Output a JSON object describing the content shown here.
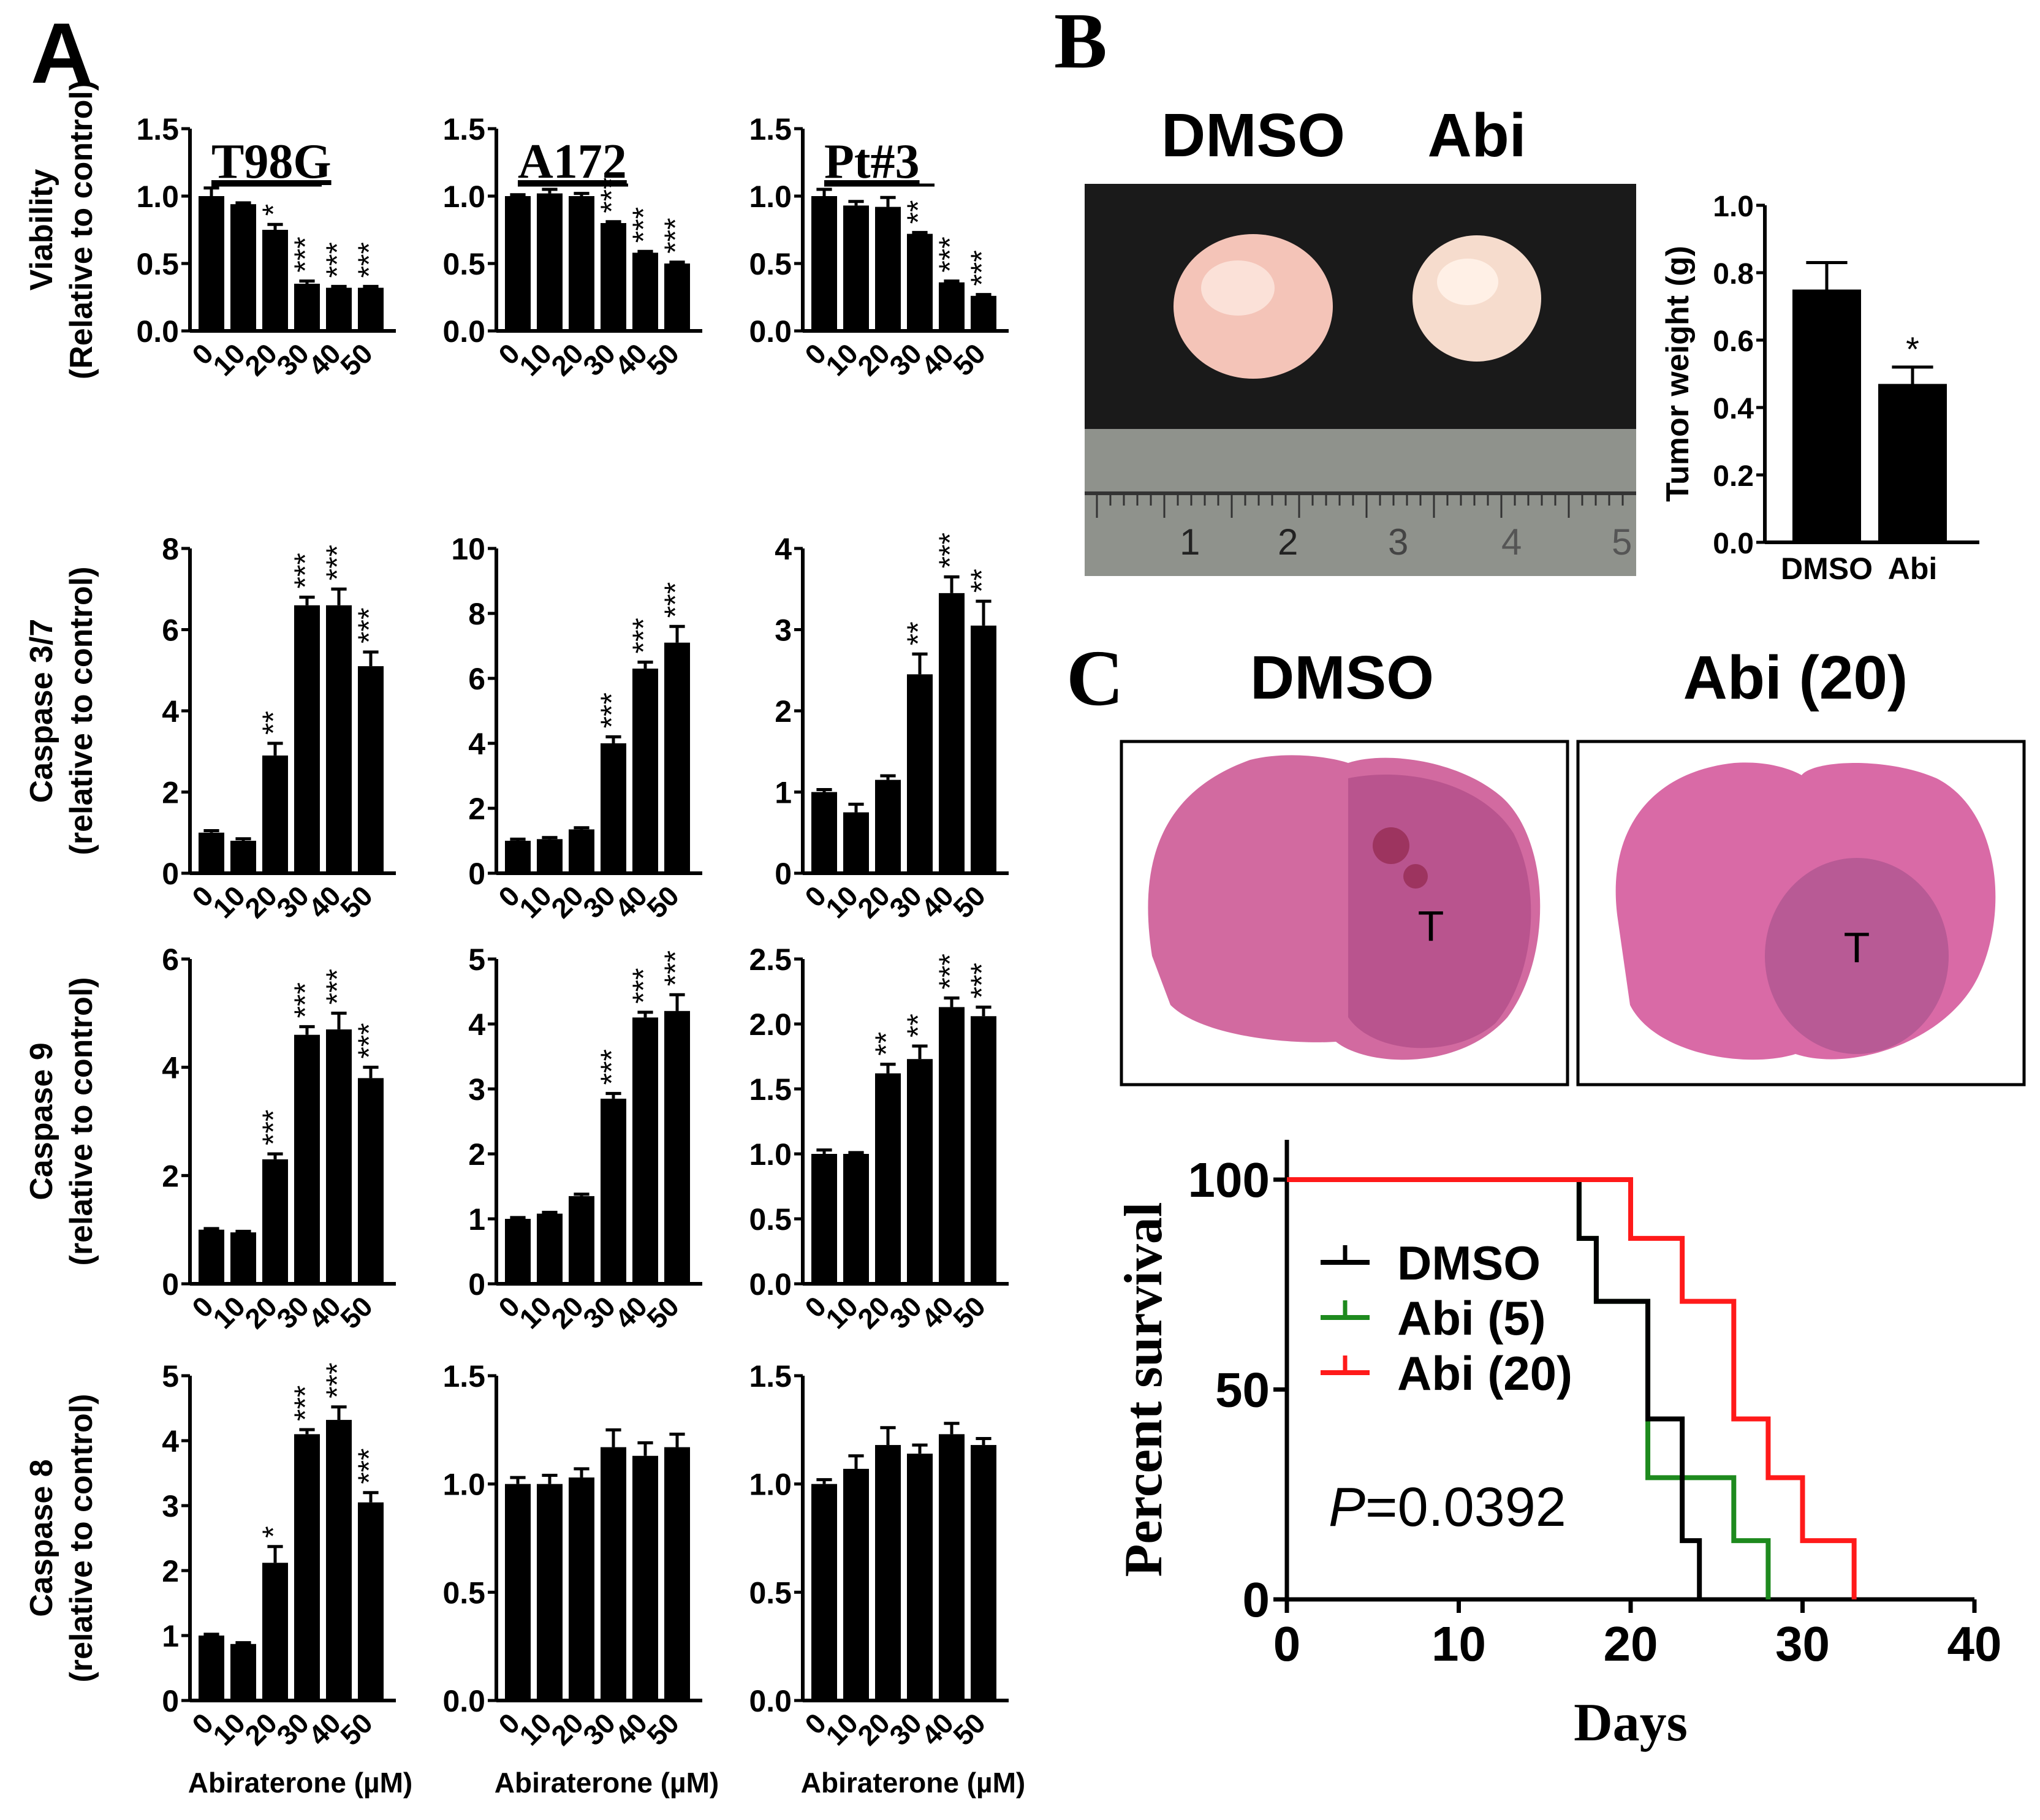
{
  "panel_labels": {
    "a": "A",
    "b": "B",
    "c": "C"
  },
  "colors": {
    "bar": "#000000",
    "dmso": "#000000",
    "abi5": "#1e8a1e",
    "abi20": "#ff1a1a",
    "tissue": "#d96aa6"
  },
  "chart_data": [
    {
      "id": "viab_t98g",
      "type": "bar",
      "title": "T98G",
      "ylabel": "Viability",
      "ylabel2": "(Relative to control)",
      "ylim": [
        0,
        1.5
      ],
      "yticks": [
        "0.0",
        "0.5",
        "1.0",
        "1.5"
      ],
      "categories": [
        "0",
        "10",
        "20",
        "30",
        "40",
        "50"
      ],
      "values": [
        1.0,
        0.94,
        0.75,
        0.35,
        0.32,
        0.32
      ],
      "errors": [
        0.06,
        0.01,
        0.04,
        0.02,
        0.01,
        0.01
      ],
      "annotations": [
        "",
        "",
        "*",
        "***",
        "***",
        "***"
      ]
    },
    {
      "id": "viab_a172",
      "type": "bar",
      "title": "A172",
      "ylim": [
        0,
        1.5
      ],
      "yticks": [
        "0.0",
        "0.5",
        "1.0",
        "1.5"
      ],
      "categories": [
        "0",
        "10",
        "20",
        "30",
        "40",
        "50"
      ],
      "values": [
        1.0,
        1.02,
        1.0,
        0.8,
        0.58,
        0.5
      ],
      "errors": [
        0.01,
        0.03,
        0.02,
        0.01,
        0.01,
        0.01
      ],
      "annotations": [
        "",
        "",
        "",
        "***",
        "***",
        "***"
      ]
    },
    {
      "id": "viab_pt3",
      "type": "bar",
      "title": "Pt#3",
      "ylim": [
        0,
        1.5
      ],
      "yticks": [
        "0.0",
        "0.5",
        "1.0",
        "1.5"
      ],
      "categories": [
        "0",
        "10",
        "20",
        "30",
        "40",
        "50"
      ],
      "values": [
        1.0,
        0.93,
        0.92,
        0.72,
        0.36,
        0.26
      ],
      "errors": [
        0.05,
        0.03,
        0.07,
        0.01,
        0.01,
        0.01
      ],
      "annotations": [
        "",
        "",
        "",
        "**",
        "***",
        "***"
      ]
    },
    {
      "id": "casp37_t98g",
      "type": "bar",
      "ylabel": "Caspase 3/7",
      "ylabel2": "(relative to control)",
      "ylim": [
        0,
        8
      ],
      "yticks": [
        "0",
        "2",
        "4",
        "6",
        "8"
      ],
      "categories": [
        "0",
        "10",
        "20",
        "30",
        "40",
        "50"
      ],
      "values": [
        1.0,
        0.8,
        2.9,
        6.6,
        6.6,
        5.1
      ],
      "errors": [
        0.05,
        0.05,
        0.3,
        0.2,
        0.4,
        0.35
      ],
      "annotations": [
        "",
        "",
        "**",
        "***",
        "***",
        "***"
      ]
    },
    {
      "id": "casp37_a172",
      "type": "bar",
      "ylim": [
        0,
        10
      ],
      "yticks": [
        "0",
        "2",
        "4",
        "6",
        "8",
        "10"
      ],
      "categories": [
        "0",
        "10",
        "20",
        "30",
        "40",
        "50"
      ],
      "values": [
        1.0,
        1.05,
        1.35,
        4.0,
        6.3,
        7.1
      ],
      "errors": [
        0.05,
        0.05,
        0.05,
        0.2,
        0.2,
        0.5
      ],
      "annotations": [
        "",
        "",
        "",
        "***",
        "***",
        "***"
      ]
    },
    {
      "id": "casp37_pt3",
      "type": "bar",
      "ylim": [
        0,
        4
      ],
      "yticks": [
        "0",
        "1",
        "2",
        "3",
        "4"
      ],
      "categories": [
        "0",
        "10",
        "20",
        "30",
        "40",
        "50"
      ],
      "values": [
        1.0,
        0.75,
        1.15,
        2.45,
        3.45,
        3.05
      ],
      "errors": [
        0.03,
        0.1,
        0.05,
        0.25,
        0.2,
        0.3
      ],
      "annotations": [
        "",
        "",
        "",
        "**",
        "***",
        "**"
      ]
    },
    {
      "id": "casp9_t98g",
      "type": "bar",
      "ylabel": "Caspase 9",
      "ylabel2": "(relative to control)",
      "ylim": [
        0,
        6
      ],
      "yticks": [
        "0",
        "2",
        "4",
        "6"
      ],
      "categories": [
        "0",
        "10",
        "20",
        "30",
        "40",
        "50"
      ],
      "values": [
        1.0,
        0.95,
        2.3,
        4.6,
        4.7,
        3.8
      ],
      "errors": [
        0.02,
        0.02,
        0.1,
        0.15,
        0.3,
        0.2
      ],
      "annotations": [
        "",
        "",
        "***",
        "***",
        "***",
        "***"
      ]
    },
    {
      "id": "casp9_a172",
      "type": "bar",
      "ylim": [
        0,
        5
      ],
      "yticks": [
        "0",
        "1",
        "2",
        "3",
        "4",
        "5"
      ],
      "categories": [
        "0",
        "10",
        "20",
        "30",
        "40",
        "50"
      ],
      "values": [
        1.0,
        1.08,
        1.35,
        2.85,
        4.1,
        4.2
      ],
      "errors": [
        0.02,
        0.02,
        0.03,
        0.08,
        0.08,
        0.25
      ],
      "annotations": [
        "",
        "",
        "",
        "***",
        "***",
        "***"
      ]
    },
    {
      "id": "casp9_pt3",
      "type": "bar",
      "ylim": [
        0,
        2.5
      ],
      "yticks": [
        "0.0",
        "0.5",
        "1.0",
        "1.5",
        "2.0",
        "2.5"
      ],
      "categories": [
        "0",
        "10",
        "20",
        "30",
        "40",
        "50"
      ],
      "values": [
        1.0,
        1.0,
        1.62,
        1.73,
        2.13,
        2.06
      ],
      "errors": [
        0.03,
        0.01,
        0.07,
        0.1,
        0.07,
        0.07
      ],
      "annotations": [
        "",
        "",
        "**",
        "**",
        "***",
        "***"
      ]
    },
    {
      "id": "casp8_t98g",
      "type": "bar",
      "ylabel": "Caspase 8",
      "ylabel2": "(relative to control)",
      "xlabel": "Abiraterone (µM)",
      "ylim": [
        0,
        5
      ],
      "yticks": [
        "0",
        "1",
        "2",
        "3",
        "4",
        "5"
      ],
      "categories": [
        "0",
        "10",
        "20",
        "30",
        "40",
        "50"
      ],
      "values": [
        1.0,
        0.87,
        2.12,
        4.1,
        4.32,
        3.05
      ],
      "errors": [
        0.02,
        0.02,
        0.25,
        0.07,
        0.2,
        0.15
      ],
      "annotations": [
        "",
        "",
        "*",
        "***",
        "***",
        "***"
      ]
    },
    {
      "id": "casp8_a172",
      "type": "bar",
      "xlabel": "Abiraterone (µM)",
      "ylim": [
        0,
        1.5
      ],
      "yticks": [
        "0.0",
        "0.5",
        "1.0",
        "1.5"
      ],
      "categories": [
        "0",
        "10",
        "20",
        "30",
        "40",
        "50"
      ],
      "values": [
        1.0,
        1.0,
        1.03,
        1.17,
        1.13,
        1.17
      ],
      "errors": [
        0.03,
        0.04,
        0.04,
        0.08,
        0.06,
        0.06
      ],
      "annotations": [
        "",
        "",
        "",
        "",
        "",
        ""
      ]
    },
    {
      "id": "casp8_pt3",
      "type": "bar",
      "xlabel": "Abiraterone (µM)",
      "ylim": [
        0,
        1.5
      ],
      "yticks": [
        "0.0",
        "0.5",
        "1.0",
        "1.5"
      ],
      "categories": [
        "0",
        "10",
        "20",
        "30",
        "40",
        "50"
      ],
      "values": [
        1.0,
        1.07,
        1.18,
        1.14,
        1.23,
        1.18
      ],
      "errors": [
        0.02,
        0.06,
        0.08,
        0.04,
        0.05,
        0.03
      ],
      "annotations": [
        "",
        "",
        "",
        "",
        "",
        ""
      ]
    },
    {
      "id": "tumor_weight",
      "type": "bar",
      "ylabel": "Tumor weight (g)",
      "ylim": [
        0,
        1.0
      ],
      "yticks": [
        "0.0",
        "0.2",
        "0.4",
        "0.6",
        "0.8",
        "1.0"
      ],
      "categories": [
        "DMSO",
        "Abi"
      ],
      "values": [
        0.75,
        0.47
      ],
      "errors": [
        0.08,
        0.05
      ],
      "annotations": [
        "",
        "*"
      ]
    },
    {
      "id": "survival",
      "type": "line",
      "xlabel": "Days",
      "ylabel": "Percent survival",
      "xlim": [
        0,
        40
      ],
      "ylim": [
        0,
        100
      ],
      "xticks": [
        "0",
        "10",
        "20",
        "30",
        "40"
      ],
      "yticks": [
        "0",
        "50",
        "100"
      ],
      "p_prefix": "P",
      "p_value": "=0.0392",
      "series": [
        {
          "name": "DMSO",
          "points": [
            [
              0,
              100
            ],
            [
              17,
              100
            ],
            [
              17,
              86
            ],
            [
              18,
              86
            ],
            [
              18,
              71
            ],
            [
              21,
              71
            ],
            [
              21,
              43
            ],
            [
              23,
              43
            ],
            [
              23,
              14
            ],
            [
              24,
              14
            ],
            [
              24,
              0
            ]
          ]
        },
        {
          "name": "Abi (5)",
          "points": [
            [
              0,
              100
            ],
            [
              17,
              100
            ],
            [
              17,
              86
            ],
            [
              18,
              86
            ],
            [
              18,
              71
            ],
            [
              21,
              71
            ],
            [
              21,
              29
            ],
            [
              26,
              29
            ],
            [
              26,
              14
            ],
            [
              28,
              14
            ],
            [
              28,
              0
            ]
          ]
        },
        {
          "name": "Abi (20)",
          "points": [
            [
              0,
              100
            ],
            [
              20,
              100
            ],
            [
              20,
              86
            ],
            [
              23,
              86
            ],
            [
              23,
              71
            ],
            [
              26,
              71
            ],
            [
              26,
              43
            ],
            [
              28,
              43
            ],
            [
              28,
              29
            ],
            [
              30,
              29
            ],
            [
              30,
              14
            ],
            [
              33,
              14
            ],
            [
              33,
              0
            ]
          ]
        }
      ]
    }
  ],
  "panel_b": {
    "label_dmso": "DMSO",
    "label_abi": "Abi",
    "ruler_marks": [
      "1",
      "2",
      "3",
      "4",
      "5"
    ]
  },
  "panel_c": {
    "label_dmso": "DMSO",
    "label_abi": "Abi (20)",
    "tumor_marker": "T"
  }
}
